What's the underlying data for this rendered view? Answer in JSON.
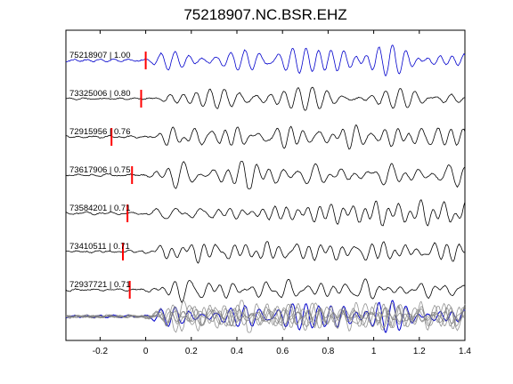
{
  "chart_data": {
    "type": "line",
    "title": "75218907.NC.BSR.EHZ",
    "xlabel": "",
    "ylabel": "",
    "xlim": [
      -0.35,
      1.4
    ],
    "xticks": [
      "-0.2",
      "0",
      "0.2",
      "0.4",
      "0.6",
      "0.8",
      "1",
      "1.2",
      "1.4"
    ],
    "xtick_values": [
      -0.2,
      0,
      0.2,
      0.4,
      0.6,
      0.8,
      1.0,
      1.2,
      1.4
    ],
    "grid": false,
    "legend": "none",
    "series": [
      {
        "name": "75218907 | 1.00",
        "pick": 0.0,
        "color": "#0000cc",
        "amp": 0.9,
        "seed": 1
      },
      {
        "name": "73325006 | 0.80",
        "pick": -0.02,
        "color": "#000000",
        "amp": 0.8,
        "seed": 2
      },
      {
        "name": "72915956 | 0.76",
        "pick": -0.15,
        "color": "#000000",
        "amp": 0.8,
        "seed": 3
      },
      {
        "name": "73617906 | 0.75",
        "pick": -0.06,
        "color": "#000000",
        "amp": 0.8,
        "seed": 4
      },
      {
        "name": "73584201 | 0.71",
        "pick": -0.08,
        "color": "#000000",
        "amp": 0.85,
        "seed": 5
      },
      {
        "name": "73410511 | 0.71",
        "pick": -0.1,
        "color": "#000000",
        "amp": 0.75,
        "seed": 6
      },
      {
        "name": "72937721 | 0.71",
        "pick": -0.07,
        "color": "#000000",
        "amp": 0.8,
        "seed": 7
      }
    ],
    "stack_colors": {
      "reference": "#0000cc",
      "others": "#808080"
    },
    "pick_color": "#ff0000"
  }
}
